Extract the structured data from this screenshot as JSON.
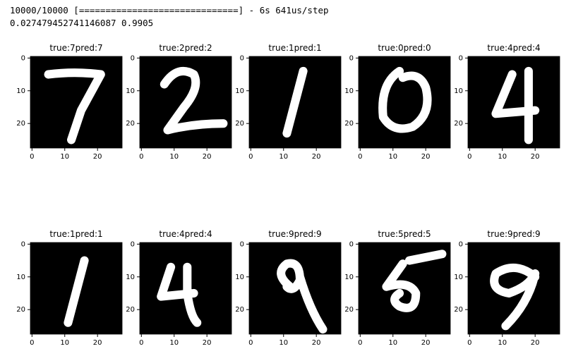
{
  "console": {
    "lines": [
      "10000/10000 [==============================] - 6s 641us/step",
      "0.027479452741146087 0.9905"
    ]
  },
  "chart_data": [
    {
      "type": "image",
      "title": "true:7pred:7",
      "xlim": [
        -0.5,
        27.5
      ],
      "ylim": [
        27.5,
        -0.5
      ],
      "xticks": [
        0,
        10,
        20
      ],
      "yticks": [
        0,
        10,
        20
      ]
    },
    {
      "type": "image",
      "title": "true:2pred:2",
      "xlim": [
        -0.5,
        27.5
      ],
      "ylim": [
        27.5,
        -0.5
      ],
      "xticks": [
        0,
        10,
        20
      ],
      "yticks": [
        0,
        10,
        20
      ]
    },
    {
      "type": "image",
      "title": "true:1pred:1",
      "xlim": [
        -0.5,
        27.5
      ],
      "ylim": [
        27.5,
        -0.5
      ],
      "xticks": [
        0,
        10,
        20
      ],
      "yticks": [
        0,
        10,
        20
      ]
    },
    {
      "type": "image",
      "title": "true:0pred:0",
      "xlim": [
        -0.5,
        27.5
      ],
      "ylim": [
        27.5,
        -0.5
      ],
      "xticks": [
        0,
        10,
        20
      ],
      "yticks": [
        0,
        10,
        20
      ]
    },
    {
      "type": "image",
      "title": "true:4pred:4",
      "xlim": [
        -0.5,
        27.5
      ],
      "ylim": [
        27.5,
        -0.5
      ],
      "xticks": [
        0,
        10,
        20
      ],
      "yticks": [
        0,
        10,
        20
      ]
    },
    {
      "type": "image",
      "title": "true:1pred:1",
      "xlim": [
        -0.5,
        27.5
      ],
      "ylim": [
        27.5,
        -0.5
      ],
      "xticks": [
        0,
        10,
        20
      ],
      "yticks": [
        0,
        10,
        20
      ]
    },
    {
      "type": "image",
      "title": "true:4pred:4",
      "xlim": [
        -0.5,
        27.5
      ],
      "ylim": [
        27.5,
        -0.5
      ],
      "xticks": [
        0,
        10,
        20
      ],
      "yticks": [
        0,
        10,
        20
      ]
    },
    {
      "type": "image",
      "title": "true:9pred:9",
      "xlim": [
        -0.5,
        27.5
      ],
      "ylim": [
        27.5,
        -0.5
      ],
      "xticks": [
        0,
        10,
        20
      ],
      "yticks": [
        0,
        10,
        20
      ]
    },
    {
      "type": "image",
      "title": "true:5pred:5",
      "xlim": [
        -0.5,
        27.5
      ],
      "ylim": [
        27.5,
        -0.5
      ],
      "xticks": [
        0,
        10,
        20
      ],
      "yticks": [
        0,
        10,
        20
      ]
    },
    {
      "type": "image",
      "title": "true:9pred:9",
      "xlim": [
        -0.5,
        27.5
      ],
      "ylim": [
        27.5,
        -0.5
      ],
      "xticks": [
        0,
        10,
        20
      ],
      "yticks": [
        0,
        10,
        20
      ]
    }
  ]
}
